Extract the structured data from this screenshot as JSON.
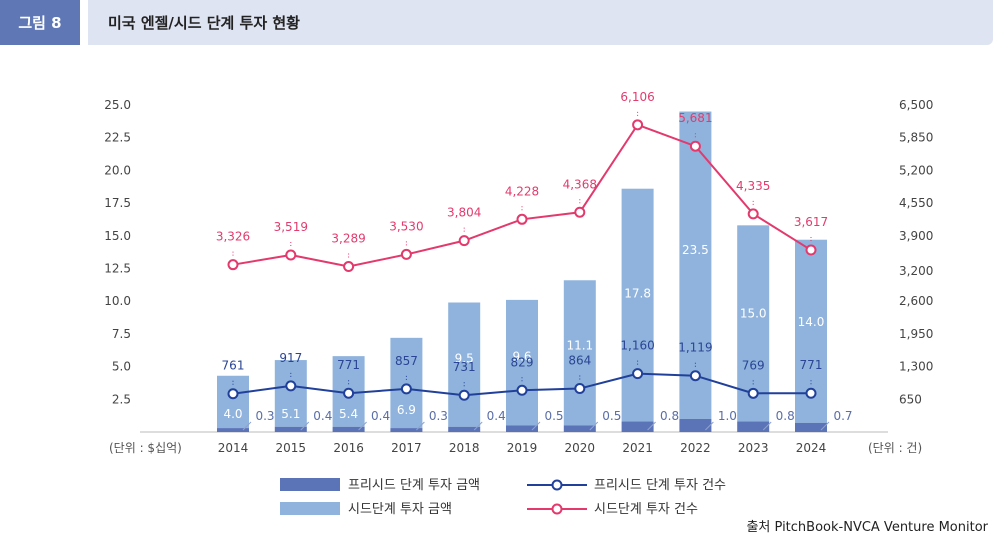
{
  "header": {
    "fig_label": "그림 8",
    "title": "미국 엔젤/시드 단계 투자 현황"
  },
  "source": "출처 PitchBook-NVCA Venture Monitor",
  "colors": {
    "pre_seed_bar": "#5b74b8",
    "seed_bar": "#8fb3dc",
    "pre_seed_line": "#21409a",
    "seed_line": "#e3396d",
    "fig_tag_bg": "#5f77b4",
    "title_bg": "#dfe4f2"
  },
  "chart_data": {
    "type": "bar",
    "categories": [
      "2014",
      "2015",
      "2016",
      "2017",
      "2018",
      "2019",
      "2020",
      "2021",
      "2022",
      "2023",
      "2024"
    ],
    "left_axis": {
      "unit_label": "(단위 : $십억)",
      "range": [
        0,
        25
      ],
      "ticks": [
        "2.5",
        "5.0",
        "7.5",
        "10.0",
        "12.5",
        "15.0",
        "17.5",
        "20.0",
        "22.5",
        "25.0"
      ],
      "tick_values": [
        2.5,
        5,
        7.5,
        10,
        12.5,
        15,
        17.5,
        20,
        22.5,
        25
      ]
    },
    "right_axis": {
      "unit_label": "(단위 : 건)",
      "range": [
        0,
        6500
      ],
      "ticks": [
        "650",
        "1,300",
        "1,950",
        "2,600",
        "3,200",
        "3,900",
        "4,550",
        "5,200",
        "5,850",
        "6,500"
      ],
      "tick_values": [
        650,
        1300,
        1950,
        2600,
        3200,
        3900,
        4550,
        5200,
        5850,
        6500
      ]
    },
    "series": [
      {
        "name": "프리시드 단계 투자 금액",
        "kind": "bar",
        "axis": "left",
        "values": [
          0.3,
          0.4,
          0.4,
          0.3,
          0.4,
          0.5,
          0.5,
          0.8,
          1.0,
          0.8,
          0.7
        ],
        "labels": [
          "0.3",
          "0.4",
          "0.4",
          "0.3",
          "0.4",
          "0.5",
          "0.5",
          "0.8",
          "1.0",
          "0.8",
          "0.7"
        ]
      },
      {
        "name": "시드단계 투자 금액",
        "kind": "bar",
        "axis": "left",
        "values": [
          4.0,
          5.1,
          5.4,
          6.9,
          9.5,
          9.6,
          11.1,
          17.8,
          23.5,
          15.0,
          14.0
        ],
        "labels": [
          "4.0",
          "5.1",
          "5.4",
          "6.9",
          "9.5",
          "9.6",
          "11.1",
          "17.8",
          "23.5",
          "15.0",
          "14.0"
        ]
      },
      {
        "name": "프리시드 단계 투자 건수",
        "kind": "line",
        "axis": "right",
        "values": [
          761,
          917,
          771,
          857,
          731,
          829,
          864,
          1160,
          1119,
          769,
          771
        ],
        "labels": [
          "761",
          "917",
          "771",
          "857",
          "731",
          "829",
          "864",
          "1,160",
          "1,119",
          "769",
          "771"
        ]
      },
      {
        "name": "시드단계 투자 건수",
        "kind": "line",
        "axis": "right",
        "values": [
          3326,
          3519,
          3289,
          3530,
          3804,
          4228,
          4368,
          6106,
          5681,
          4335,
          3617
        ],
        "labels": [
          "3,326",
          "3,519",
          "3,289",
          "3,530",
          "3,804",
          "4,228",
          "4,368",
          "6,106",
          "5,681",
          "4,335",
          "3,617"
        ]
      }
    ],
    "legend_position": "bottom-center"
  }
}
